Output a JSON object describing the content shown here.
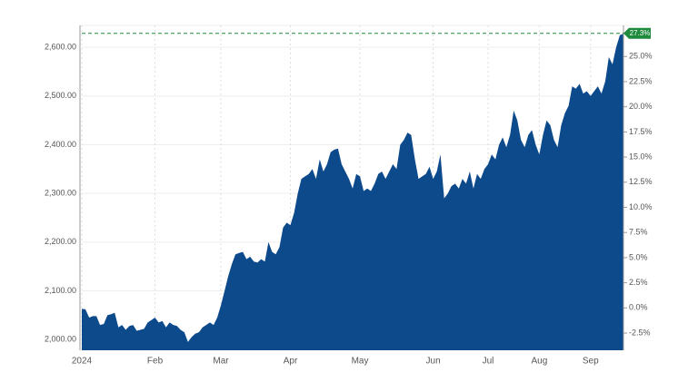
{
  "chart_data": {
    "type": "area",
    "color": "#0d4a8c",
    "grid": true,
    "categories": [
      "2024",
      null,
      null,
      null,
      null,
      null,
      null,
      null,
      null,
      null,
      null,
      null,
      null,
      null,
      null,
      null,
      null,
      null,
      null,
      null,
      "Feb",
      null,
      null,
      null,
      null,
      null,
      null,
      null,
      null,
      null,
      null,
      null,
      null,
      null,
      null,
      null,
      null,
      null,
      "Mar",
      null,
      null,
      null,
      null,
      null,
      null,
      null,
      null,
      null,
      null,
      null,
      null,
      null,
      null,
      null,
      null,
      null,
      null,
      "Apr",
      null,
      null,
      null,
      null,
      null,
      null,
      null,
      null,
      null,
      null,
      null,
      null,
      null,
      null,
      null,
      null,
      null,
      null,
      "May",
      null,
      null,
      null,
      null,
      null,
      null,
      null,
      null,
      null,
      null,
      null,
      null,
      null,
      null,
      null,
      null,
      null,
      null,
      null,
      "Jun",
      null,
      null,
      null,
      null,
      null,
      null,
      null,
      null,
      null,
      null,
      null,
      null,
      null,
      null,
      "Jul",
      null,
      null,
      null,
      null,
      null,
      null,
      null,
      null,
      null,
      null,
      null,
      null,
      null,
      "Aug",
      null,
      null,
      null,
      null,
      null,
      null,
      null,
      null,
      null,
      null,
      null,
      null,
      null,
      "Sep",
      null,
      null,
      null,
      null,
      null,
      null,
      null,
      null,
      null
    ],
    "values": [
      2063,
      2062,
      2045,
      2048,
      2048,
      2030,
      2032,
      2050,
      2052,
      2055,
      2025,
      2030,
      2020,
      2028,
      2030,
      2018,
      2020,
      2022,
      2035,
      2040,
      2045,
      2035,
      2038,
      2025,
      2035,
      2030,
      2028,
      2020,
      2015,
      1995,
      2005,
      2012,
      2015,
      2025,
      2030,
      2035,
      2030,
      2045,
      2070,
      2100,
      2130,
      2155,
      2175,
      2178,
      2180,
      2165,
      2170,
      2160,
      2158,
      2165,
      2160,
      2200,
      2180,
      2175,
      2190,
      2230,
      2240,
      2235,
      2260,
      2300,
      2330,
      2335,
      2340,
      2350,
      2330,
      2370,
      2345,
      2360,
      2385,
      2390,
      2392,
      2360,
      2345,
      2330,
      2310,
      2340,
      2335,
      2305,
      2310,
      2305,
      2320,
      2340,
      2345,
      2330,
      2345,
      2360,
      2350,
      2400,
      2410,
      2425,
      2420,
      2370,
      2330,
      2335,
      2340,
      2355,
      2330,
      2345,
      2380,
      2290,
      2300,
      2315,
      2320,
      2310,
      2330,
      2320,
      2345,
      2310,
      2340,
      2330,
      2350,
      2360,
      2380,
      2370,
      2400,
      2415,
      2395,
      2420,
      2470,
      2450,
      2410,
      2395,
      2420,
      2430,
      2400,
      2380,
      2420,
      2450,
      2440,
      2410,
      2395,
      2440,
      2465,
      2480,
      2520,
      2515,
      2525,
      2505,
      2510,
      2500,
      2510,
      2520,
      2505,
      2530,
      2580,
      2565,
      2600,
      2625,
      2628
    ],
    "ylim": [
      1978,
      2645
    ],
    "yticks": [
      {
        "value": 2000,
        "label": "2,000.00"
      },
      {
        "value": 2100,
        "label": "2,100.00"
      },
      {
        "value": 2200,
        "label": "2,200.00"
      },
      {
        "value": 2300,
        "label": "2,300.00"
      },
      {
        "value": 2400,
        "label": "2,400.00"
      },
      {
        "value": 2500,
        "label": "2,500.00"
      },
      {
        "value": 2600,
        "label": "2,600.00"
      }
    ],
    "y2lim": [
      -4.21,
      28.09
    ],
    "y2ticks": [
      {
        "value": -2.5,
        "label": "-2.5%"
      },
      {
        "value": 0,
        "label": "0.0%"
      },
      {
        "value": 2.5,
        "label": "2.5%"
      },
      {
        "value": 5,
        "label": "5.0%"
      },
      {
        "value": 7.5,
        "label": "7.5%"
      },
      {
        "value": 10,
        "label": "10.0%"
      },
      {
        "value": 12.5,
        "label": "12.5%"
      },
      {
        "value": 15,
        "label": "15.0%"
      },
      {
        "value": 17.5,
        "label": "17.5%"
      },
      {
        "value": 20,
        "label": "20.0%"
      },
      {
        "value": 22.5,
        "label": "22.5%"
      },
      {
        "value": 25,
        "label": "25.0%"
      }
    ],
    "badge": {
      "value": 27.3,
      "label": "27.3%",
      "color": "#1e8a3c"
    }
  }
}
